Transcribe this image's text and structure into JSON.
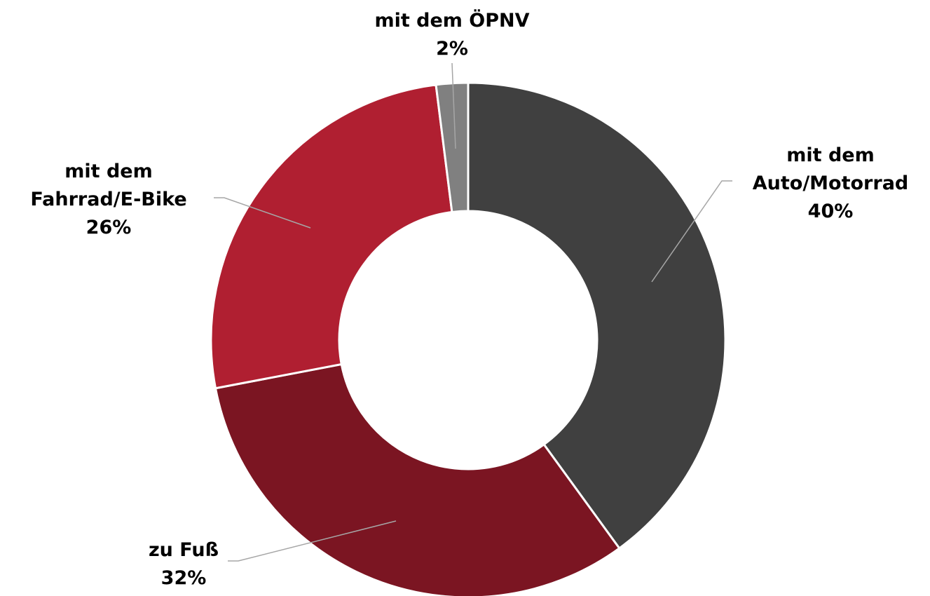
{
  "chart_data": {
    "type": "donut",
    "categories": [
      "mit dem Auto/Motorrad",
      "zu Fuß",
      "mit dem Fahrrad/E-Bike",
      "mit dem ÖPNV"
    ],
    "values": [
      40,
      32,
      26,
      2
    ],
    "value_labels": [
      "40%",
      "32%",
      "26%",
      "2%"
    ],
    "colors": [
      "#404040",
      "#7b1522",
      "#b01f31",
      "#808080"
    ]
  }
}
